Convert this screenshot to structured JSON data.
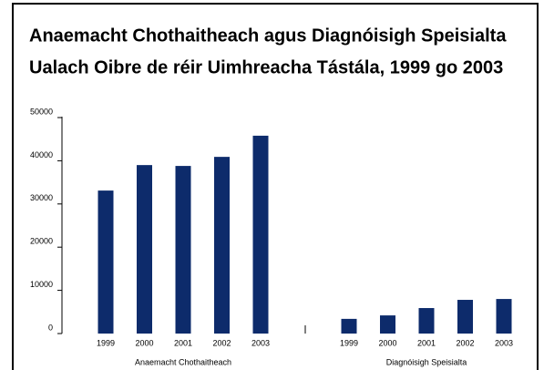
{
  "chart_data": {
    "type": "bar",
    "title": [
      "Anaemacht Chothaitheach agus Diagnóisigh Speisialta",
      "Ualach Oibre de réir Uimhreacha Tástála, 1999 go 2003"
    ],
    "groups": [
      {
        "name": "Anaemacht Chothaitheach",
        "categories": [
          "1999",
          "2000",
          "2001",
          "2002",
          "2003"
        ],
        "values": [
          33100,
          39000,
          38800,
          40900,
          45800
        ]
      },
      {
        "name": "Diagnóisigh Speisialta",
        "categories": [
          "1999",
          "2000",
          "2001",
          "2002",
          "2003"
        ],
        "values": [
          3400,
          4200,
          5900,
          7800,
          8000
        ]
      }
    ],
    "color": "#0d2b6b",
    "ylim": [
      0,
      50000
    ],
    "yticks": [
      0,
      10000,
      20000,
      30000,
      40000,
      50000
    ]
  }
}
